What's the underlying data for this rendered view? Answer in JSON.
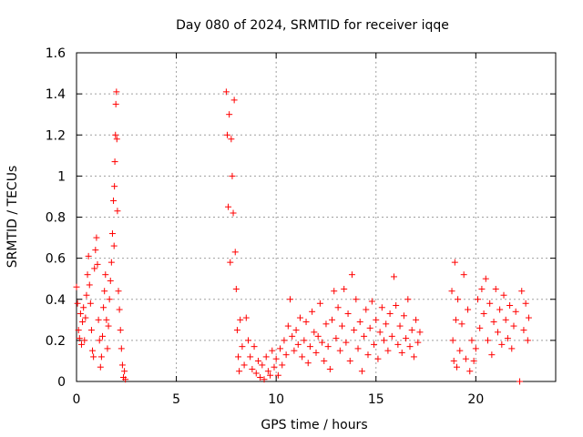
{
  "chart_data": {
    "type": "scatter",
    "title": "Day 080 of 2024, SRMTID for receiver iqqe",
    "xlabel": "GPS time / hours",
    "ylabel": "SRMTID / TECUs",
    "xlim": [
      0,
      24
    ],
    "ylim": [
      0,
      1.6
    ],
    "xticks": [
      0,
      5,
      10,
      15,
      20
    ],
    "xtick_labels": [
      "0",
      "5",
      "10",
      "15",
      "20"
    ],
    "yticks": [
      0,
      0.2,
      0.4,
      0.6,
      0.8,
      1.0,
      1.2,
      1.4,
      1.6
    ],
    "ytick_labels": [
      "0",
      "0.2",
      "0.4",
      "0.6",
      "0.8",
      "1",
      "1.2",
      "1.4",
      "1.6"
    ],
    "grid": true,
    "marker": "+",
    "color": "#ff0000",
    "series": [
      {
        "name": "SRMTID",
        "points": [
          [
            0.0,
            0.46
          ],
          [
            0.05,
            0.38
          ],
          [
            0.1,
            0.25
          ],
          [
            0.15,
            0.21
          ],
          [
            0.2,
            0.33
          ],
          [
            0.25,
            0.18
          ],
          [
            0.3,
            0.29
          ],
          [
            0.35,
            0.36
          ],
          [
            0.4,
            0.2
          ],
          [
            0.45,
            0.31
          ],
          [
            0.5,
            0.42
          ],
          [
            0.55,
            0.52
          ],
          [
            0.6,
            0.61
          ],
          [
            0.65,
            0.47
          ],
          [
            0.7,
            0.38
          ],
          [
            0.75,
            0.25
          ],
          [
            0.8,
            0.15
          ],
          [
            0.85,
            0.12
          ],
          [
            0.9,
            0.55
          ],
          [
            0.95,
            0.64
          ],
          [
            1.0,
            0.7
          ],
          [
            1.05,
            0.57
          ],
          [
            1.1,
            0.3
          ],
          [
            1.15,
            0.2
          ],
          [
            1.2,
            0.07
          ],
          [
            1.25,
            0.12
          ],
          [
            1.3,
            0.22
          ],
          [
            1.35,
            0.36
          ],
          [
            1.4,
            0.44
          ],
          [
            1.45,
            0.52
          ],
          [
            1.5,
            0.3
          ],
          [
            1.55,
            0.16
          ],
          [
            1.6,
            0.27
          ],
          [
            1.65,
            0.4
          ],
          [
            1.7,
            0.49
          ],
          [
            1.75,
            0.58
          ],
          [
            1.8,
            0.72
          ],
          [
            1.85,
            0.88
          ],
          [
            1.88,
            0.66
          ],
          [
            1.9,
            0.95
          ],
          [
            1.92,
            1.07
          ],
          [
            1.95,
            1.2
          ],
          [
            1.97,
            1.35
          ],
          [
            2.0,
            1.41
          ],
          [
            2.02,
            1.18
          ],
          [
            2.05,
            0.83
          ],
          [
            2.1,
            0.44
          ],
          [
            2.15,
            0.35
          ],
          [
            2.2,
            0.25
          ],
          [
            2.25,
            0.16
          ],
          [
            2.3,
            0.08
          ],
          [
            2.35,
            0.02
          ],
          [
            2.4,
            0.05
          ],
          [
            2.45,
            0.01
          ],
          [
            7.5,
            1.41
          ],
          [
            7.55,
            1.2
          ],
          [
            7.6,
            0.85
          ],
          [
            7.65,
            1.3
          ],
          [
            7.7,
            0.58
          ],
          [
            7.75,
            1.18
          ],
          [
            7.8,
            1.0
          ],
          [
            7.85,
            0.82
          ],
          [
            7.9,
            1.37
          ],
          [
            7.95,
            0.63
          ],
          [
            8.0,
            0.45
          ],
          [
            8.05,
            0.25
          ],
          [
            8.1,
            0.12
          ],
          [
            8.15,
            0.05
          ],
          [
            8.2,
            0.3
          ],
          [
            8.3,
            0.17
          ],
          [
            8.4,
            0.08
          ],
          [
            8.5,
            0.31
          ],
          [
            8.6,
            0.2
          ],
          [
            8.7,
            0.12
          ],
          [
            8.8,
            0.06
          ],
          [
            8.9,
            0.17
          ],
          [
            9.0,
            0.04
          ],
          [
            9.1,
            0.1
          ],
          [
            9.2,
            0.02
          ],
          [
            9.3,
            0.08
          ],
          [
            9.4,
            0.01
          ],
          [
            9.5,
            0.12
          ],
          [
            9.6,
            0.05
          ],
          [
            9.7,
            0.03
          ],
          [
            9.8,
            0.15
          ],
          [
            9.9,
            0.07
          ],
          [
            10.0,
            0.11
          ],
          [
            10.1,
            0.03
          ],
          [
            10.2,
            0.16
          ],
          [
            10.3,
            0.08
          ],
          [
            10.4,
            0.2
          ],
          [
            10.5,
            0.13
          ],
          [
            10.6,
            0.27
          ],
          [
            10.7,
            0.4
          ],
          [
            10.8,
            0.22
          ],
          [
            10.9,
            0.15
          ],
          [
            11.0,
            0.25
          ],
          [
            11.1,
            0.18
          ],
          [
            11.2,
            0.31
          ],
          [
            11.3,
            0.12
          ],
          [
            11.4,
            0.2
          ],
          [
            11.5,
            0.29
          ],
          [
            11.6,
            0.09
          ],
          [
            11.7,
            0.17
          ],
          [
            11.8,
            0.34
          ],
          [
            11.9,
            0.24
          ],
          [
            12.0,
            0.14
          ],
          [
            12.1,
            0.22
          ],
          [
            12.2,
            0.38
          ],
          [
            12.3,
            0.19
          ],
          [
            12.4,
            0.1
          ],
          [
            12.5,
            0.28
          ],
          [
            12.6,
            0.17
          ],
          [
            12.7,
            0.06
          ],
          [
            12.8,
            0.3
          ],
          [
            12.9,
            0.44
          ],
          [
            13.0,
            0.21
          ],
          [
            13.1,
            0.36
          ],
          [
            13.2,
            0.15
          ],
          [
            13.3,
            0.27
          ],
          [
            13.4,
            0.45
          ],
          [
            13.5,
            0.19
          ],
          [
            13.6,
            0.33
          ],
          [
            13.7,
            0.1
          ],
          [
            13.8,
            0.52
          ],
          [
            13.9,
            0.25
          ],
          [
            14.0,
            0.4
          ],
          [
            14.1,
            0.16
          ],
          [
            14.2,
            0.29
          ],
          [
            14.3,
            0.05
          ],
          [
            14.4,
            0.22
          ],
          [
            14.5,
            0.35
          ],
          [
            14.6,
            0.13
          ],
          [
            14.7,
            0.26
          ],
          [
            14.8,
            0.39
          ],
          [
            14.9,
            0.18
          ],
          [
            15.0,
            0.3
          ],
          [
            15.1,
            0.11
          ],
          [
            15.2,
            0.24
          ],
          [
            15.3,
            0.36
          ],
          [
            15.4,
            0.2
          ],
          [
            15.5,
            0.28
          ],
          [
            15.6,
            0.15
          ],
          [
            15.7,
            0.33
          ],
          [
            15.8,
            0.22
          ],
          [
            15.9,
            0.51
          ],
          [
            16.0,
            0.37
          ],
          [
            16.1,
            0.18
          ],
          [
            16.2,
            0.27
          ],
          [
            16.3,
            0.14
          ],
          [
            16.4,
            0.32
          ],
          [
            16.5,
            0.21
          ],
          [
            16.6,
            0.4
          ],
          [
            16.7,
            0.17
          ],
          [
            16.8,
            0.25
          ],
          [
            16.9,
            0.12
          ],
          [
            17.0,
            0.3
          ],
          [
            17.1,
            0.19
          ],
          [
            17.2,
            0.24
          ],
          [
            18.8,
            0.44
          ],
          [
            18.85,
            0.2
          ],
          [
            18.9,
            0.1
          ],
          [
            18.95,
            0.58
          ],
          [
            19.0,
            0.3
          ],
          [
            19.05,
            0.07
          ],
          [
            19.1,
            0.4
          ],
          [
            19.2,
            0.15
          ],
          [
            19.3,
            0.28
          ],
          [
            19.4,
            0.52
          ],
          [
            19.5,
            0.11
          ],
          [
            19.6,
            0.35
          ],
          [
            19.7,
            0.05
          ],
          [
            19.8,
            0.2
          ],
          [
            19.9,
            0.1
          ],
          [
            20.0,
            0.16
          ],
          [
            20.1,
            0.4
          ],
          [
            20.2,
            0.26
          ],
          [
            20.3,
            0.45
          ],
          [
            20.4,
            0.33
          ],
          [
            20.5,
            0.5
          ],
          [
            20.6,
            0.2
          ],
          [
            20.7,
            0.38
          ],
          [
            20.8,
            0.13
          ],
          [
            20.9,
            0.29
          ],
          [
            21.0,
            0.45
          ],
          [
            21.1,
            0.24
          ],
          [
            21.2,
            0.35
          ],
          [
            21.3,
            0.18
          ],
          [
            21.4,
            0.42
          ],
          [
            21.5,
            0.3
          ],
          [
            21.6,
            0.21
          ],
          [
            21.7,
            0.37
          ],
          [
            21.8,
            0.16
          ],
          [
            21.9,
            0.27
          ],
          [
            22.0,
            0.34
          ],
          [
            22.2,
            0.0
          ],
          [
            22.3,
            0.44
          ],
          [
            22.4,
            0.25
          ],
          [
            22.5,
            0.38
          ],
          [
            22.6,
            0.2
          ],
          [
            22.65,
            0.31
          ]
        ]
      }
    ]
  }
}
